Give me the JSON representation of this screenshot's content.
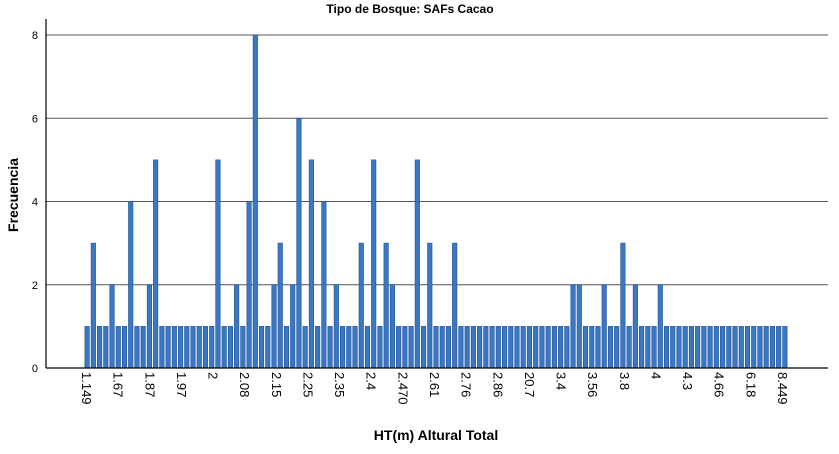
{
  "chart_data": {
    "type": "bar",
    "title": "Tipo de Bosque: SAFs Cacao",
    "xlabel": "HT(m) Altural Total",
    "ylabel": "Frecuencia",
    "ylim": [
      0,
      8
    ],
    "yticks": [
      0,
      2,
      4,
      6,
      8
    ],
    "grid": true,
    "bar_color": "#3a78c6",
    "bar_edge_color": "#1e4f8f",
    "x_tick_labels": [
      "1.149",
      "1.67",
      "1.87",
      "1.97",
      "2",
      "2.08",
      "2.15",
      "2.25",
      "2.35",
      "2.4",
      "2.470",
      "2.61",
      "2.76",
      "2.86",
      "20.7",
      "3.4",
      "3.56",
      "3.8",
      "4",
      "4.3",
      "4.66",
      "6.18",
      "8.449"
    ],
    "values": [
      1,
      3,
      1,
      1,
      2,
      1,
      1,
      4,
      1,
      1,
      2,
      5,
      1,
      1,
      1,
      1,
      1,
      1,
      1,
      1,
      1,
      5,
      1,
      1,
      2,
      1,
      4,
      8,
      1,
      1,
      2,
      3,
      1,
      2,
      6,
      1,
      5,
      1,
      4,
      1,
      2,
      1,
      1,
      1,
      3,
      1,
      5,
      1,
      3,
      2,
      1,
      1,
      1,
      5,
      1,
      3,
      1,
      1,
      1,
      3,
      1,
      1,
      1,
      1,
      1,
      1,
      1,
      1,
      1,
      1,
      1,
      1,
      1,
      1,
      1,
      1,
      1,
      1,
      2,
      2,
      1,
      1,
      1,
      2,
      1,
      1,
      3,
      1,
      2,
      1,
      1,
      1,
      2,
      1,
      1,
      1,
      1,
      1,
      1,
      1,
      1,
      1,
      1,
      1,
      1,
      1,
      1,
      1,
      1,
      1,
      1,
      1,
      1
    ]
  }
}
